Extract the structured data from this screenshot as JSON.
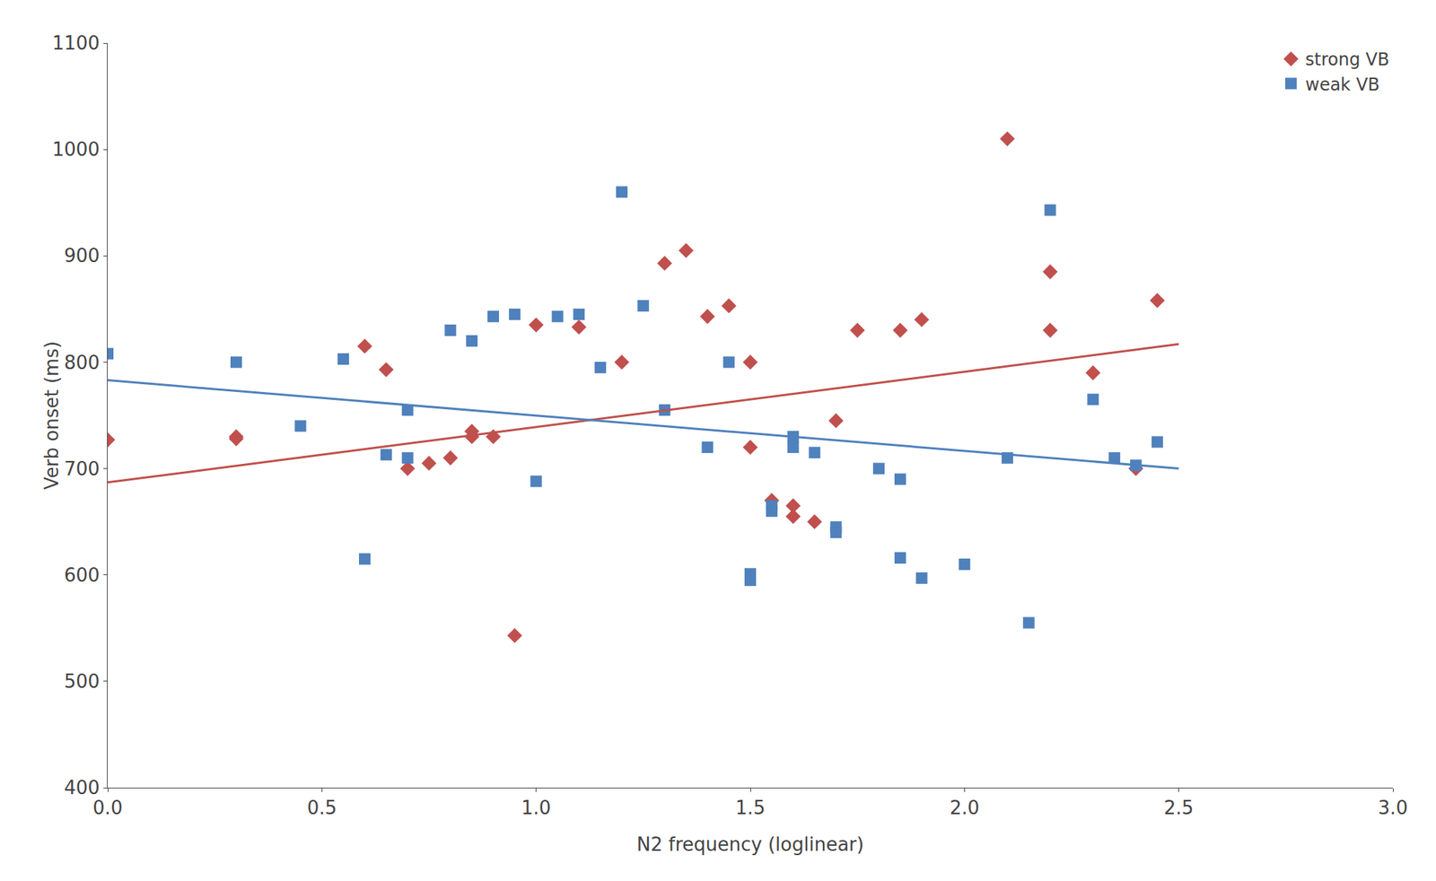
{
  "chart_data": {
    "type": "scatter",
    "xlabel": "N2 frequency (loglinear)",
    "ylabel": "Verb onset (ms)",
    "xlim": [
      0,
      3
    ],
    "ylim": [
      400,
      1100
    ],
    "xticks": [
      {
        "value": 0,
        "label": "0.0"
      },
      0.5,
      {
        "value": 1,
        "label": "1.0"
      },
      1.5,
      {
        "value": 2,
        "label": "2.0"
      },
      2.5,
      {
        "value": 3,
        "label": "3.0"
      }
    ],
    "yticks": [
      400,
      500,
      600,
      700,
      800,
      900,
      1000,
      1100
    ],
    "grid": false,
    "legend": "upper right",
    "series": [
      {
        "name": "strong VB",
        "type": "scatter",
        "color": "#c0504d",
        "marker": "diamond",
        "x": [
          0.0,
          0.3,
          0.3,
          0.6,
          0.65,
          0.7,
          0.75,
          0.8,
          0.85,
          0.85,
          0.9,
          0.95,
          1.0,
          1.1,
          1.2,
          1.3,
          1.35,
          1.4,
          1.45,
          1.5,
          1.5,
          1.55,
          1.6,
          1.6,
          1.65,
          1.7,
          1.75,
          1.85,
          1.9,
          2.1,
          2.2,
          2.2,
          2.3,
          2.4,
          2.45
        ],
        "values": [
          727,
          730,
          728,
          815,
          793,
          700,
          705,
          710,
          730,
          735,
          730,
          543,
          835,
          833,
          800,
          893,
          905,
          843,
          853,
          800,
          720,
          670,
          665,
          655,
          650,
          745,
          830,
          830,
          840,
          1010,
          885,
          830,
          790,
          700,
          858
        ]
      },
      {
        "name": "weak VB",
        "type": "scatter",
        "color": "#4f81bd",
        "marker": "square",
        "x": [
          0.0,
          0.3,
          0.45,
          0.55,
          0.6,
          0.65,
          0.7,
          0.7,
          0.8,
          0.85,
          0.9,
          0.95,
          1.0,
          1.05,
          1.1,
          1.15,
          1.2,
          1.25,
          1.3,
          1.4,
          1.45,
          1.5,
          1.5,
          1.55,
          1.55,
          1.6,
          1.6,
          1.65,
          1.7,
          1.7,
          1.8,
          1.85,
          1.85,
          1.9,
          2.0,
          2.1,
          2.15,
          2.2,
          2.3,
          2.35,
          2.4,
          2.45
        ],
        "values": [
          808,
          800,
          740,
          803,
          615,
          713,
          710,
          755,
          830,
          820,
          843,
          845,
          688,
          843,
          845,
          795,
          960,
          853,
          755,
          720,
          800,
          601,
          595,
          665,
          660,
          720,
          730,
          715,
          645,
          640,
          700,
          616,
          690,
          597,
          610,
          710,
          555,
          943,
          765,
          710,
          703,
          725
        ]
      },
      {
        "type": "line",
        "color": "#c0504d",
        "x": [
          0.0,
          2.5
        ],
        "values": [
          687,
          817
        ]
      },
      {
        "type": "line",
        "color": "#4f81bd",
        "x": [
          0.0,
          2.5
        ],
        "values": [
          783,
          700
        ]
      }
    ]
  }
}
